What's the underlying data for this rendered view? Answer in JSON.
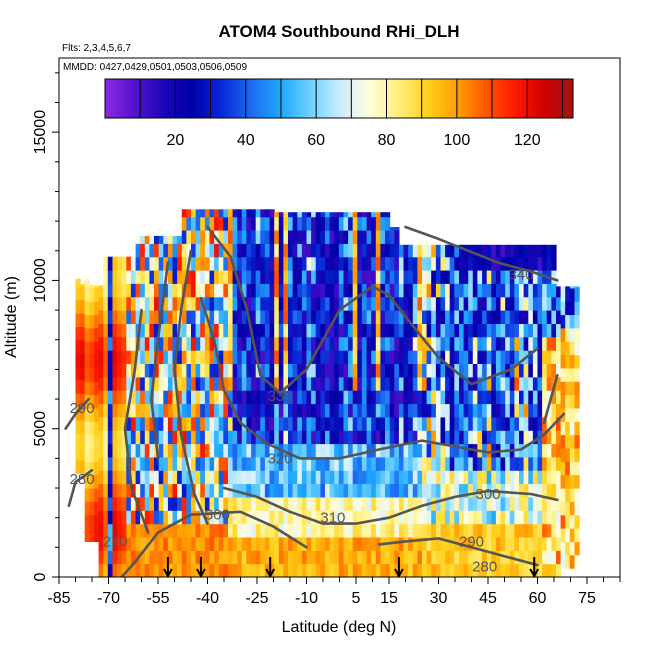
{
  "chart_data": {
    "type": "heatmap",
    "title": "ATOM4 Southbound RHi_DLH",
    "flights_note": "Flts: 2,3,4,5,6,7",
    "dates_note": "MMDD: 0427,0429,0501,0503,0506,0509",
    "xlabel": "Latitude (deg N)",
    "ylabel": "Altitude (m)",
    "xlim": [
      -85,
      85
    ],
    "ylim": [
      0,
      17500
    ],
    "x_ticks": [
      -85,
      -70,
      -55,
      -40,
      -25,
      -10,
      5,
      15,
      30,
      45,
      60,
      75
    ],
    "y_ticks": [
      0,
      5000,
      10000,
      15000
    ],
    "colorbar": {
      "range": [
        0,
        133
      ],
      "ticks": [
        20,
        40,
        60,
        80,
        100,
        120
      ],
      "colors": [
        "#8a2be2",
        "#5512d0",
        "#1a06b8",
        "#0000a8",
        "#0a28d8",
        "#1e6cf0",
        "#1ea8ff",
        "#6cd0ff",
        "#c8ecff",
        "#fffde0",
        "#fff080",
        "#ffd21e",
        "#ffa000",
        "#ff5a00",
        "#ff1a00",
        "#d20000",
        "#a01414"
      ],
      "placement": "inset-top"
    },
    "contour_labels": [
      {
        "text": "340",
        "lat": 55,
        "alt": 10200
      },
      {
        "text": "330",
        "lat": -18,
        "alt": 6100
      },
      {
        "text": "320",
        "lat": -18,
        "alt": 4000
      },
      {
        "text": "310",
        "lat": -2,
        "alt": 2000
      },
      {
        "text": "300",
        "lat": -37,
        "alt": 2100
      },
      {
        "text": "300",
        "lat": 45,
        "alt": 2800
      },
      {
        "text": "290",
        "lat": -78,
        "alt": 5700
      },
      {
        "text": "290",
        "lat": 40,
        "alt": 1200
      },
      {
        "text": "280",
        "lat": -78,
        "alt": 3300
      },
      {
        "text": "280",
        "lat": 44,
        "alt": 350
      },
      {
        "text": "270",
        "lat": -68,
        "alt": 1200
      }
    ],
    "arrows_lat": [
      -52,
      -42,
      -21,
      18,
      59
    ],
    "grid": false,
    "legend": "none"
  }
}
